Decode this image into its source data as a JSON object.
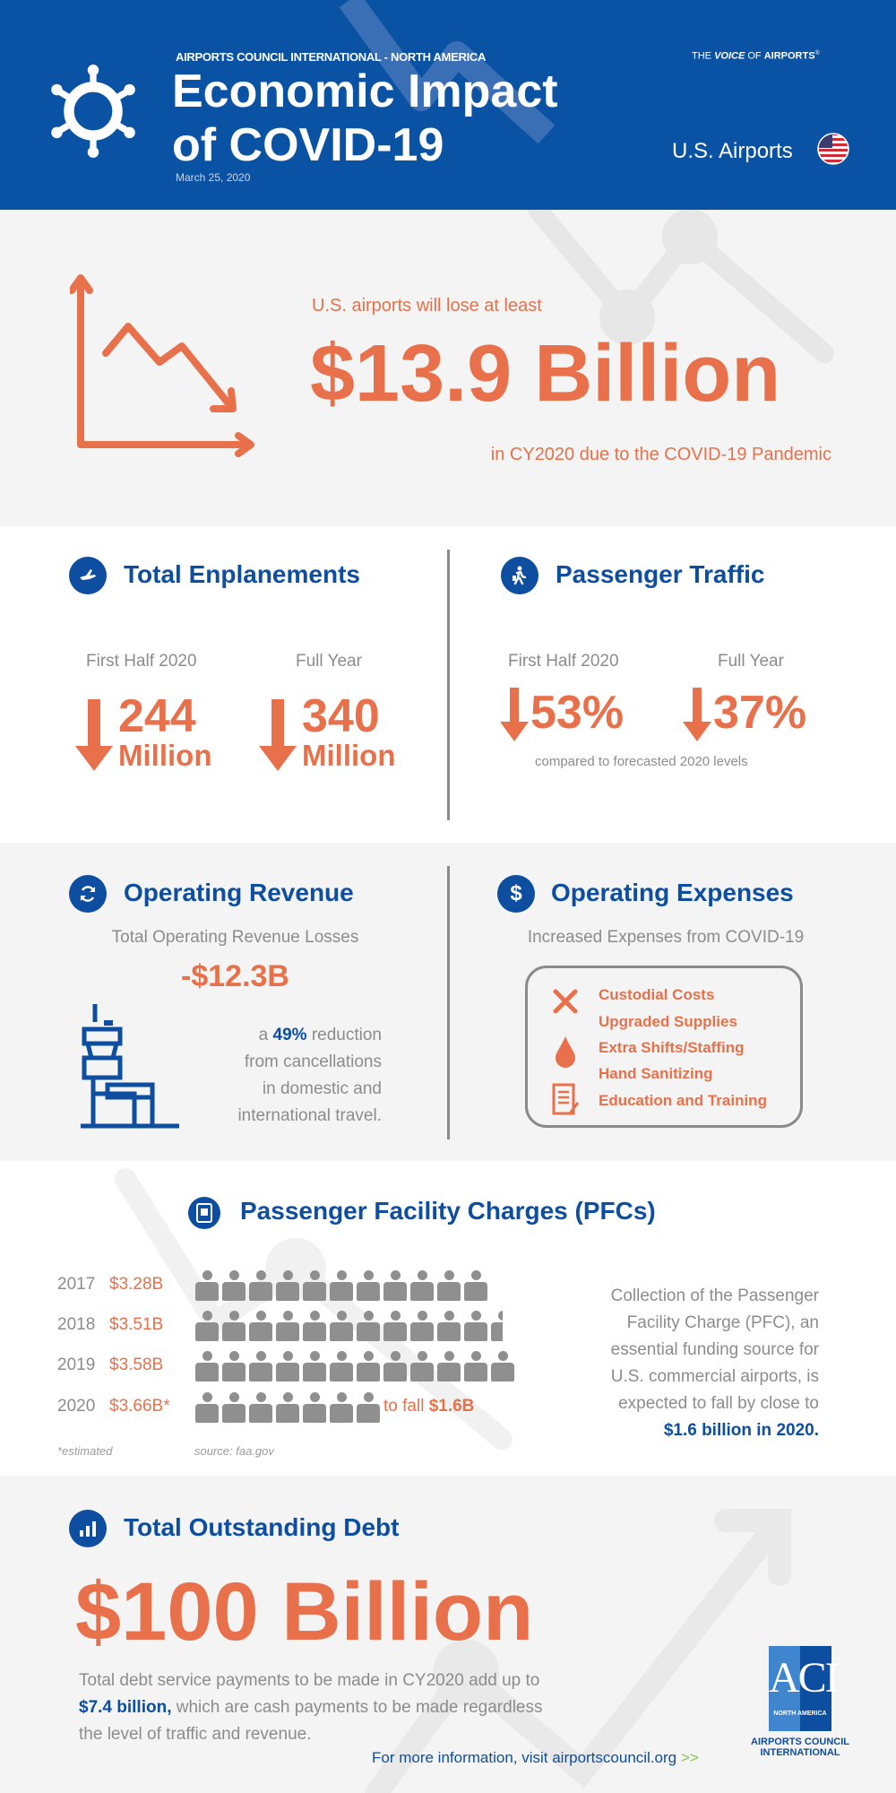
{
  "header": {
    "org": "AIRPORTS COUNCIL INTERNATIONAL - NORTH AMERICA",
    "title_line1": "Economic Impact",
    "title_line2": "of COVID-19",
    "date": "March 25, 2020",
    "tagline_the": "THE",
    "tagline_voice": "VOICE",
    "tagline_of": "OF",
    "tagline_airports": "AIRPORTS",
    "tagline_reg": "®",
    "region": "U.S. Airports"
  },
  "loss": {
    "intro": "U.S. airports will lose at least",
    "amount": "$13.9 Billion",
    "outro": "in CY2020 due to the COVID-19 Pandemic"
  },
  "enplanements": {
    "title": "Total Enplanements",
    "items": [
      {
        "label": "First Half 2020",
        "value": "244",
        "unit": "Million"
      },
      {
        "label": "Full Year",
        "value": "340",
        "unit": "Million"
      }
    ]
  },
  "traffic": {
    "title": "Passenger Traffic",
    "items": [
      {
        "label": "First Half 2020",
        "value": "53%"
      },
      {
        "label": "Full Year",
        "value": "37%"
      }
    ],
    "note": "compared to forecasted 2020 levels"
  },
  "revenue": {
    "title": "Operating Revenue",
    "subtitle": "Total Operating Revenue Losses",
    "amount": "-$12.3B",
    "desc_a": "a",
    "desc_pct": "49%",
    "desc_b": "reduction",
    "desc_lines": [
      "from cancellations",
      "in domestic and",
      "international travel."
    ]
  },
  "expenses": {
    "title": "Operating Expenses",
    "subtitle": "Increased Expenses from COVID-19",
    "items": [
      "Custodial Costs",
      "Upgraded Supplies",
      "Extra Shifts/Staffing",
      "Hand Sanitizing",
      "Education and Training"
    ]
  },
  "pfc": {
    "title": "Passenger Facility Charges (PFCs)",
    "rows": [
      {
        "year": "2017",
        "value": "$3.28B",
        "icons": 11
      },
      {
        "year": "2018",
        "value": "$3.51B",
        "icons": 11.5
      },
      {
        "year": "2019",
        "value": "$3.58B",
        "icons": 12
      },
      {
        "year": "2020",
        "value": "$3.66B*",
        "icons": 7
      }
    ],
    "fall_prefix": "to fall",
    "fall_value": "$1.6B",
    "footnote": "*estimated",
    "source": "source: faa.gov",
    "desc_lines": [
      "Collection of the Passenger",
      "Facility Charge (PFC), an",
      "essential funding source for",
      "U.S. commercial airports, is",
      "expected to fall by close to"
    ],
    "desc_bold": "$1.6 billion in 2020."
  },
  "debt": {
    "title": "Total Outstanding Debt",
    "amount": "$100 Billion",
    "line1": "Total debt service payments to be made in CY2020 add up to",
    "bold": "$7.4 billion,",
    "line2_rest": " which are cash payments to be made regardless",
    "line3": "the level of traffic and revenue."
  },
  "footer": {
    "link": "For more information, visit airportscouncil.org",
    "chevrons": ">>",
    "logo_letters": "ACI",
    "logo_sub": "NORTH AMERICA",
    "logo_name1": "AIRPORTS COUNCIL",
    "logo_name2": "INTERNATIONAL"
  },
  "colors": {
    "blue": "#0a52a3",
    "orange": "#e8704a",
    "gray": "#8c8c8c"
  }
}
